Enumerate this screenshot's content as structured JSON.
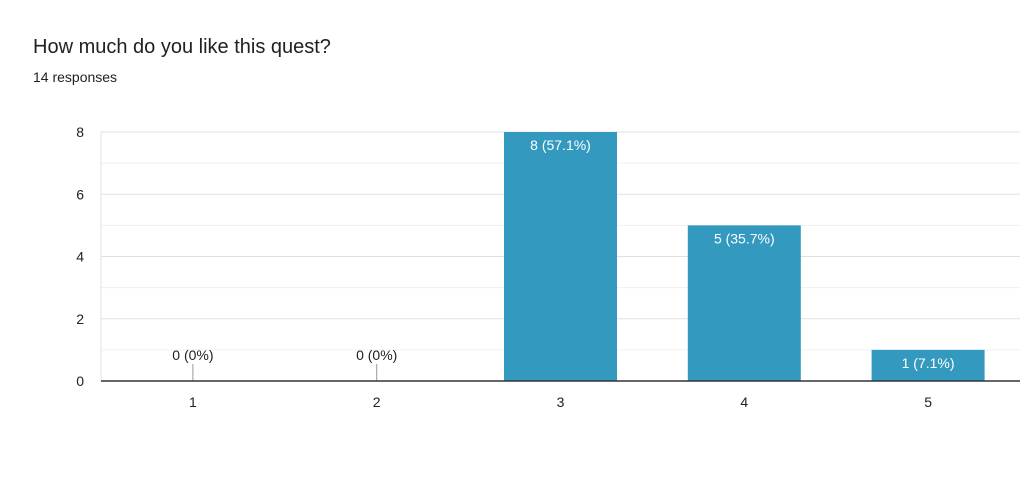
{
  "question": {
    "title": "How much do you like this quest?",
    "responses": "14 responses"
  },
  "colors": {
    "bar": "#3399bf",
    "grid": "#e6e6e6",
    "axis": "#333333",
    "text": "#202124"
  },
  "chart_data": {
    "type": "bar",
    "categories": [
      "1",
      "2",
      "3",
      "4",
      "5"
    ],
    "values": [
      0,
      0,
      8,
      5,
      1
    ],
    "data_labels": [
      "0 (0%)",
      "0 (0%)",
      "8 (57.1%)",
      "5 (35.7%)",
      "1 (7.1%)"
    ],
    "y_ticks": [
      "0",
      "2",
      "4",
      "6",
      "8"
    ],
    "ylim": [
      0,
      8
    ],
    "grid": true,
    "legend": "none"
  }
}
